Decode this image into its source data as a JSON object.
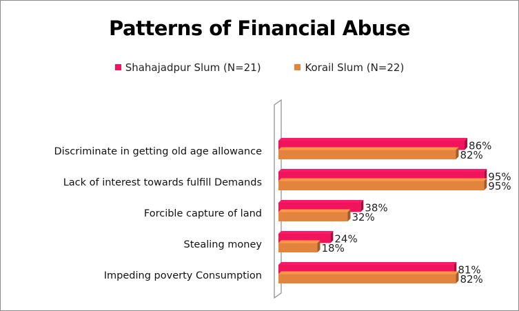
{
  "chart_data": {
    "type": "bar",
    "orientation": "horizontal",
    "style": "3d-clustered",
    "title": "Patterns of Financial Abuse",
    "categories": [
      "Discriminate in getting old age allowance",
      "Lack of interest  towards fulfill Demands",
      "Forcible capture of land",
      "Stealing money",
      "Impeding poverty Consumption"
    ],
    "series": [
      {
        "name": "Shahajadpur Slum (N=21)",
        "color": "#f0145c",
        "values": [
          86,
          95,
          38,
          24,
          81
        ],
        "labels": [
          "86%",
          "95%",
          "38%",
          "24%",
          "81%"
        ]
      },
      {
        "name": "Korail Slum (N=22)",
        "color": "#e2843e",
        "values": [
          82,
          95,
          32,
          18,
          82
        ],
        "labels": [
          "82%",
          "95%",
          "32%",
          "18%",
          "82%"
        ]
      }
    ],
    "unit": "%",
    "xlim": [
      0,
      100
    ],
    "grid": false,
    "legend_position": "top"
  }
}
